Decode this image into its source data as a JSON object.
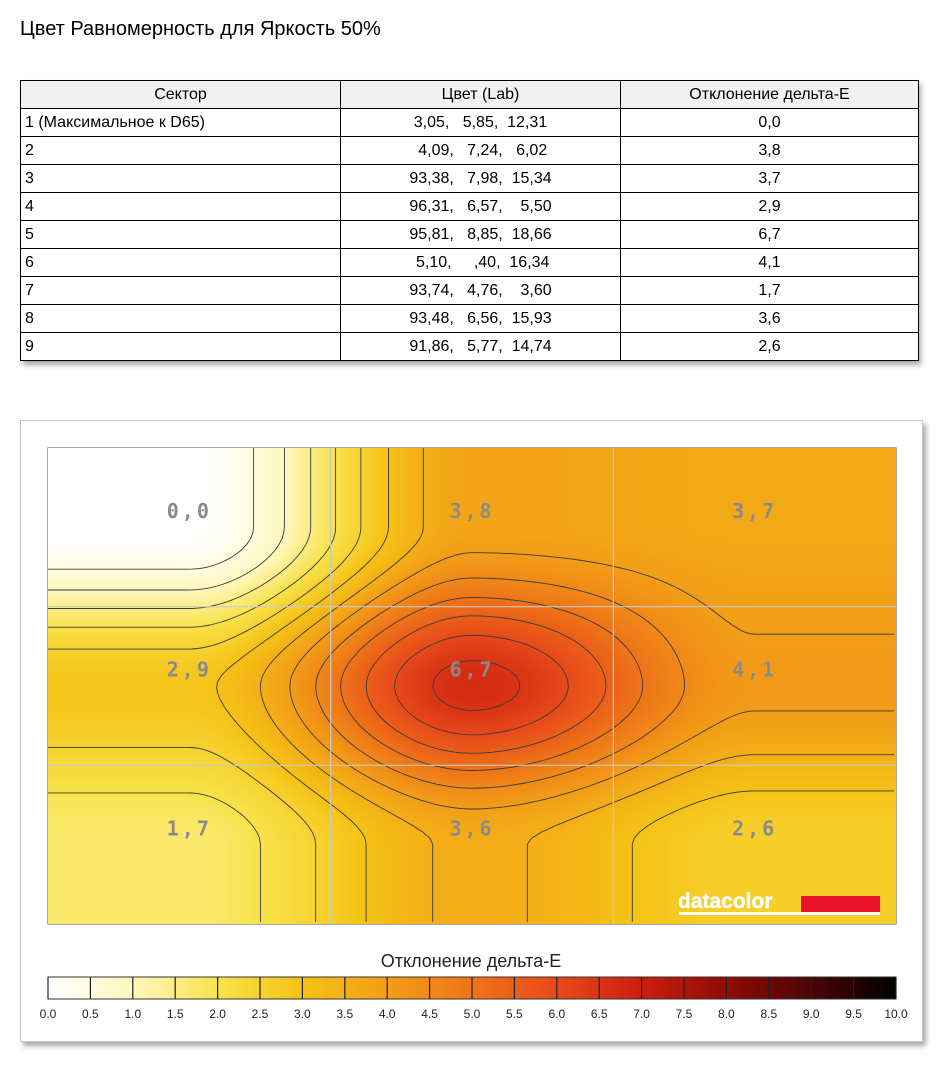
{
  "page_title": "Цвет Равномерность для Яркость 50%",
  "table": {
    "headers": [
      "Сектор",
      "Цвет (Lab)",
      "Отклонение дельта-E"
    ],
    "rows": [
      {
        "sector": "1 (Максимальное к D65)",
        "lab": "3,05,   5,85,  12,31",
        "delta": "0,0"
      },
      {
        "sector": "2",
        "lab": " 4,09,   7,24,   6,02",
        "delta": "3,8"
      },
      {
        "sector": "3",
        "lab": "93,38,   7,98,  15,34",
        "delta": "3,7"
      },
      {
        "sector": "4",
        "lab": "96,31,   6,57,    5,50",
        "delta": "2,9"
      },
      {
        "sector": "5",
        "lab": "95,81,   8,85,  18,66",
        "delta": "6,7"
      },
      {
        "sector": "6",
        "lab": " 5,10,     ,40,  16,34",
        "delta": "4,1"
      },
      {
        "sector": "7",
        "lab": "93,74,   4,76,    3,60",
        "delta": "1,7"
      },
      {
        "sector": "8",
        "lab": "93,48,   6,56,  15,93",
        "delta": "3,6"
      },
      {
        "sector": "9",
        "lab": "91,86,   5,77,  14,74",
        "delta": "2,6"
      }
    ]
  },
  "chart_data": {
    "type": "heatmap",
    "grid": {
      "rows": 3,
      "cols": 3
    },
    "values": [
      [
        0.0,
        3.8,
        3.7
      ],
      [
        2.9,
        6.7,
        4.1
      ],
      [
        1.7,
        3.6,
        2.6
      ]
    ],
    "cell_labels": [
      [
        "0,0",
        "3,8",
        "3,7"
      ],
      [
        "2,9",
        "6,7",
        "4,1"
      ],
      [
        "1,7",
        "3,6",
        "2,6"
      ]
    ],
    "colorbar": {
      "title": "Отклонение дельта-E",
      "min": 0,
      "max": 10,
      "ticks": [
        "0.0",
        "0.5",
        "1.0",
        "1.5",
        "2.0",
        "2.5",
        "3.0",
        "3.5",
        "4.0",
        "4.5",
        "5.0",
        "5.5",
        "6.0",
        "6.5",
        "7.0",
        "7.5",
        "8.0",
        "8.5",
        "9.0",
        "9.5",
        "10.0"
      ]
    },
    "contour_lines": true,
    "brand": "datacolor",
    "colors": {
      "brand_bar": "#e8132a",
      "contour": "#3a3a3a",
      "grid": "#c9c9c9"
    }
  }
}
